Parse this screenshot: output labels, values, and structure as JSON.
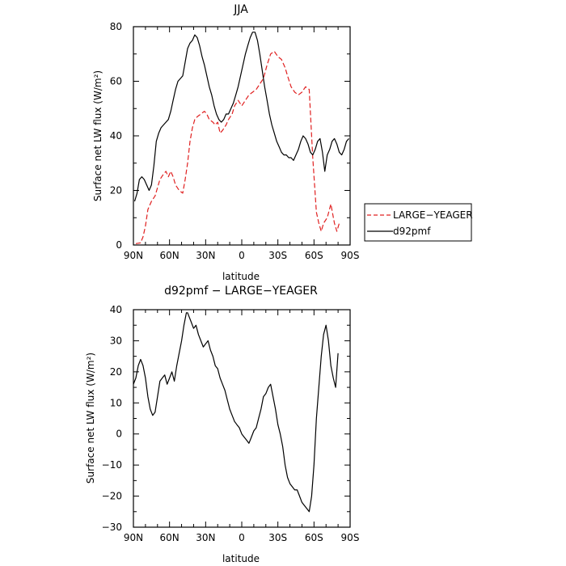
{
  "chart_data": [
    {
      "type": "line",
      "title": "JJA",
      "xlabel": "latitude",
      "ylabel": "Surface net LW flux (W/m²)",
      "xlim": [
        -90,
        90
      ],
      "ylim": [
        0,
        80
      ],
      "x_ticks": [
        {
          "value": -90,
          "label": "90N"
        },
        {
          "value": -60,
          "label": "60N"
        },
        {
          "value": -30,
          "label": "30N"
        },
        {
          "value": 0,
          "label": "0"
        },
        {
          "value": 30,
          "label": "30S"
        },
        {
          "value": 60,
          "label": "60S"
        },
        {
          "value": 90,
          "label": "90S"
        }
      ],
      "y_ticks": [
        0,
        20,
        40,
        60,
        80
      ],
      "legend": {
        "position": "right"
      },
      "series": [
        {
          "name": "LARGE−YEAGER",
          "color": "#e02020",
          "dash": "dashed",
          "x": [
            -88,
            -84,
            -82,
            -80,
            -78,
            -75,
            -72,
            -70,
            -68,
            -65,
            -63,
            -61,
            -59,
            -57,
            -55,
            -52,
            -49,
            -47,
            -45,
            -43,
            -41,
            -39,
            -37,
            -34,
            -31,
            -29,
            -27,
            -24,
            -22,
            -20,
            -18,
            -16,
            -13,
            -11,
            -8,
            -6,
            -3,
            0,
            3,
            6,
            9,
            12,
            15,
            18,
            21,
            24,
            27,
            30,
            33,
            36,
            38,
            41,
            44,
            47,
            50,
            53,
            56,
            59,
            62,
            64,
            66,
            68,
            71,
            74,
            77,
            79,
            81
          ],
          "y": [
            0.5,
            0.8,
            3,
            7,
            13,
            16,
            18,
            21,
            24,
            26,
            27,
            25,
            27,
            25,
            22,
            20,
            19,
            24,
            30,
            38,
            43,
            46,
            47,
            48,
            49,
            48,
            46,
            45,
            44,
            45,
            41,
            42,
            44,
            46,
            48,
            51,
            53,
            51,
            53,
            55,
            56,
            57,
            59,
            61,
            66,
            70,
            71,
            69,
            68,
            65,
            62,
            58,
            56,
            55,
            56,
            58,
            57,
            32,
            12,
            8,
            5,
            8,
            10,
            15,
            8,
            5,
            8
          ]
        },
        {
          "name": "d92pmf",
          "color": "#000000",
          "dash": "solid",
          "x": [
            -89,
            -87,
            -85,
            -83,
            -81,
            -79,
            -77,
            -75,
            -73,
            -71,
            -69,
            -67,
            -65,
            -63,
            -61,
            -59,
            -57,
            -55,
            -53,
            -51,
            -49,
            -47,
            -45,
            -43,
            -41,
            -39,
            -37,
            -35,
            -33,
            -31,
            -29,
            -27,
            -25,
            -23,
            -21,
            -19,
            -17,
            -15,
            -13,
            -11,
            -9,
            -7,
            -5,
            -3,
            -1,
            1,
            3,
            5,
            7,
            9,
            11,
            13,
            15,
            17,
            19,
            21,
            23,
            25,
            27,
            29,
            31,
            33,
            35,
            37,
            39,
            41,
            43,
            45,
            47,
            49,
            51,
            53,
            55,
            57,
            59,
            61,
            63,
            65,
            67,
            69,
            71,
            73,
            75,
            77,
            79,
            81,
            83,
            85,
            87,
            89
          ],
          "y": [
            16,
            19,
            24,
            25,
            24,
            22,
            20,
            22,
            29,
            38,
            41,
            43,
            44,
            45,
            46,
            49,
            53,
            57,
            60,
            61,
            62,
            67,
            72,
            74,
            75,
            77,
            76,
            73,
            69,
            66,
            62,
            58,
            55,
            51,
            48,
            46,
            45,
            46,
            48,
            48,
            50,
            52,
            55,
            58,
            62,
            66,
            70,
            73,
            76,
            78,
            78,
            75,
            70,
            64,
            58,
            53,
            48,
            44,
            41,
            38,
            36,
            34,
            33,
            33,
            32,
            32,
            31,
            33,
            35,
            38,
            40,
            39,
            37,
            34,
            33,
            35,
            38,
            39,
            34,
            27,
            33,
            35,
            38,
            39,
            37,
            34,
            33,
            35,
            38,
            39
          ]
        }
      ]
    },
    {
      "type": "line",
      "title": "d92pmf − LARGE−YEAGER",
      "xlabel": "latitude",
      "ylabel": "Surface net LW flux (W/m²)",
      "xlim": [
        -90,
        90
      ],
      "ylim": [
        -30,
        40
      ],
      "x_ticks": [
        {
          "value": -90,
          "label": "90N"
        },
        {
          "value": -60,
          "label": "60N"
        },
        {
          "value": -30,
          "label": "30N"
        },
        {
          "value": 0,
          "label": "0"
        },
        {
          "value": 30,
          "label": "30S"
        },
        {
          "value": 60,
          "label": "60S"
        },
        {
          "value": 90,
          "label": "90S"
        }
      ],
      "y_ticks": [
        -30,
        -20,
        -10,
        0,
        10,
        20,
        30,
        40
      ],
      "series": [
        {
          "name": "",
          "color": "#000000",
          "dash": "solid",
          "x": [
            -90,
            -88,
            -86,
            -84,
            -82,
            -80,
            -78,
            -76,
            -74,
            -72,
            -70,
            -68,
            -66,
            -64,
            -62,
            -60,
            -58,
            -56,
            -54,
            -52,
            -50,
            -48,
            -46,
            -45,
            -44,
            -42,
            -40,
            -38,
            -36,
            -34,
            -32,
            -30,
            -28,
            -26,
            -24,
            -22,
            -20,
            -18,
            -16,
            -14,
            -12,
            -10,
            -8,
            -6,
            -4,
            -2,
            0,
            2,
            4,
            6,
            8,
            10,
            12,
            14,
            16,
            18,
            20,
            22,
            24,
            26,
            28,
            30,
            32,
            34,
            36,
            38,
            40,
            42,
            44,
            46,
            48,
            50,
            52,
            54,
            56,
            58,
            60,
            62,
            64,
            66,
            68,
            70,
            72,
            74,
            76,
            78,
            80
          ],
          "y": [
            16,
            18,
            22,
            24,
            22,
            18,
            12,
            8,
            6,
            7,
            12,
            17,
            18,
            19,
            16,
            18,
            20,
            17,
            22,
            26,
            30,
            35,
            39,
            39,
            38,
            36,
            34,
            35,
            32,
            30,
            28,
            29,
            30,
            27,
            25,
            22,
            21,
            18,
            16,
            14,
            11,
            8,
            6,
            4,
            3,
            2,
            0,
            -1,
            -2,
            -3,
            -1,
            1,
            2,
            5,
            8,
            12,
            13,
            15,
            16,
            12,
            8,
            3,
            0,
            -4,
            -10,
            -14,
            -16,
            -17,
            -18,
            -18,
            -20,
            -22,
            -23,
            -24,
            -25,
            -20,
            -10,
            5,
            15,
            25,
            32,
            35,
            30,
            22,
            18,
            15,
            26
          ]
        }
      ]
    }
  ]
}
